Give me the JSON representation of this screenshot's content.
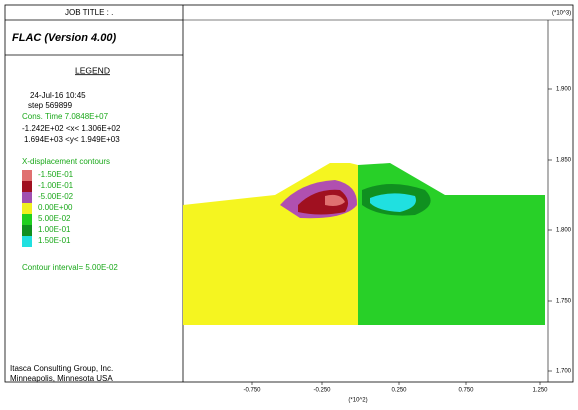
{
  "header": {
    "job_title": "JOB TITLE : .",
    "program": "FLAC (Version 4.00)"
  },
  "legend": {
    "title": "LEGEND",
    "date": "24-Jul-16  10:45",
    "step": "step  569899",
    "cons_time": "Cons. Time    7.0848E+07",
    "x_range": "-1.242E+02 <x< 1.306E+02",
    "y_range": "1.694E+03 <y< 1.949E+03",
    "contour_title": "X-displacement contours",
    "contour_levels": [
      "-1.50E-01",
      "-1.00E-01",
      "-5.00E-02",
      "0.00E+00",
      "5.00E-02",
      "1.00E-01",
      "1.50E-01"
    ],
    "interval": "Contour interval=  5.00E-02"
  },
  "footer": {
    "company": "Itasca Consulting Group, Inc.",
    "location": "Minneapolis, Minnesota  USA"
  },
  "axes": {
    "y_scale": "(*10^3)",
    "y_ticks": [
      "1.900",
      "1.850",
      "1.800",
      "1.750",
      "1.700"
    ],
    "x_ticks": [
      "-0.750",
      "-0.250",
      "0.250",
      "0.750",
      "1.250"
    ],
    "x_scale": "(*10^2)"
  }
}
